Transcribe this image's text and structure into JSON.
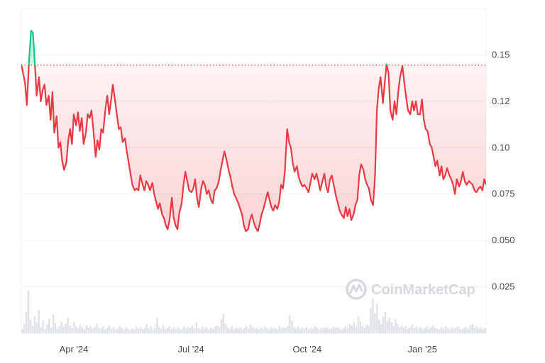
{
  "watermark": {
    "brand": "CoinMarketCap",
    "icon": "coinmarketcap-logo-icon"
  },
  "colors": {
    "up": "#16c784",
    "down": "#ea3943",
    "volume": "#dfe3e8",
    "grid": "#eef0f3",
    "baseline_dots": "#ea3943"
  },
  "chart_data": {
    "type": "line",
    "title": "",
    "xlabel": "",
    "ylabel": "",
    "x_tick_labels": [
      "Apr '24",
      "Jul '24",
      "Oct '24",
      "Jan '25"
    ],
    "y_tick_labels": [
      "0.025",
      "0.050",
      "0.075",
      "0.10",
      "0.12",
      "0.15"
    ],
    "y_ticks": [
      0.025,
      0.05,
      0.075,
      0.1,
      0.125,
      0.15
    ],
    "ylim": [
      0.0,
      0.175
    ],
    "xlim": [
      0,
      100
    ],
    "x_tick_positions": [
      11.3,
      36.5,
      61.5,
      86.3
    ],
    "baseline": 0.1445,
    "grid": true,
    "legend": "none",
    "series": [
      {
        "values": [
          [
            0.0,
            0.145
          ],
          [
            0.8,
            0.135
          ],
          [
            1.2,
            0.123
          ],
          [
            1.7,
            0.148
          ],
          [
            2.1,
            0.163
          ],
          [
            2.5,
            0.162
          ],
          [
            2.9,
            0.146
          ],
          [
            3.3,
            0.128
          ],
          [
            3.8,
            0.138
          ],
          [
            4.2,
            0.125
          ],
          [
            4.6,
            0.131
          ],
          [
            5.0,
            0.134
          ],
          [
            5.4,
            0.123
          ],
          [
            5.9,
            0.128
          ],
          [
            6.3,
            0.115
          ],
          [
            6.7,
            0.13
          ],
          [
            7.1,
            0.108
          ],
          [
            7.6,
            0.117
          ],
          [
            8.0,
            0.1
          ],
          [
            8.4,
            0.103
          ],
          [
            8.8,
            0.093
          ],
          [
            9.2,
            0.088
          ],
          [
            9.7,
            0.092
          ],
          [
            10.1,
            0.104
          ],
          [
            10.5,
            0.11
          ],
          [
            10.9,
            0.102
          ],
          [
            11.3,
            0.118
          ],
          [
            11.8,
            0.112
          ],
          [
            12.2,
            0.119
          ],
          [
            12.6,
            0.109
          ],
          [
            13.0,
            0.116
          ],
          [
            13.4,
            0.102
          ],
          [
            13.9,
            0.108
          ],
          [
            14.3,
            0.118
          ],
          [
            14.7,
            0.116
          ],
          [
            15.1,
            0.12
          ],
          [
            15.5,
            0.11
          ],
          [
            16.0,
            0.095
          ],
          [
            16.4,
            0.104
          ],
          [
            16.8,
            0.099
          ],
          [
            17.2,
            0.11
          ],
          [
            17.6,
            0.108
          ],
          [
            18.1,
            0.121
          ],
          [
            18.5,
            0.128
          ],
          [
            18.9,
            0.118
          ],
          [
            19.3,
            0.125
          ],
          [
            19.7,
            0.134
          ],
          [
            20.2,
            0.125
          ],
          [
            20.6,
            0.117
          ],
          [
            21.0,
            0.11
          ],
          [
            21.4,
            0.111
          ],
          [
            21.8,
            0.103
          ],
          [
            22.3,
            0.105
          ],
          [
            22.7,
            0.098
          ],
          [
            23.1,
            0.092
          ],
          [
            23.5,
            0.086
          ],
          [
            23.9,
            0.08
          ],
          [
            24.4,
            0.077
          ],
          [
            24.8,
            0.078
          ],
          [
            25.2,
            0.077
          ],
          [
            25.6,
            0.085
          ],
          [
            26.1,
            0.08
          ],
          [
            26.5,
            0.077
          ],
          [
            26.9,
            0.082
          ],
          [
            27.3,
            0.08
          ],
          [
            27.7,
            0.077
          ],
          [
            28.2,
            0.081
          ],
          [
            28.6,
            0.075
          ],
          [
            29.0,
            0.071
          ],
          [
            29.4,
            0.067
          ],
          [
            29.8,
            0.07
          ],
          [
            30.3,
            0.064
          ],
          [
            30.7,
            0.062
          ],
          [
            31.1,
            0.058
          ],
          [
            31.5,
            0.056
          ],
          [
            31.9,
            0.061
          ],
          [
            32.4,
            0.073
          ],
          [
            32.8,
            0.062
          ],
          [
            33.2,
            0.058
          ],
          [
            33.6,
            0.056
          ],
          [
            34.0,
            0.065
          ],
          [
            34.5,
            0.07
          ],
          [
            34.9,
            0.08
          ],
          [
            35.3,
            0.087
          ],
          [
            35.7,
            0.082
          ],
          [
            36.1,
            0.077
          ],
          [
            36.6,
            0.076
          ],
          [
            37.0,
            0.078
          ],
          [
            37.4,
            0.083
          ],
          [
            37.8,
            0.073
          ],
          [
            38.2,
            0.068
          ],
          [
            38.7,
            0.078
          ],
          [
            39.1,
            0.082
          ],
          [
            39.5,
            0.08
          ],
          [
            39.9,
            0.075
          ],
          [
            40.3,
            0.077
          ],
          [
            40.8,
            0.072
          ],
          [
            41.2,
            0.07
          ],
          [
            41.6,
            0.077
          ],
          [
            42.0,
            0.078
          ],
          [
            42.5,
            0.082
          ],
          [
            42.9,
            0.088
          ],
          [
            43.3,
            0.093
          ],
          [
            43.7,
            0.098
          ],
          [
            44.1,
            0.094
          ],
          [
            44.6,
            0.088
          ],
          [
            45.0,
            0.084
          ],
          [
            45.4,
            0.079
          ],
          [
            45.8,
            0.075
          ],
          [
            46.2,
            0.073
          ],
          [
            46.7,
            0.07
          ],
          [
            47.1,
            0.067
          ],
          [
            47.5,
            0.064
          ],
          [
            47.9,
            0.058
          ],
          [
            48.3,
            0.055
          ],
          [
            48.8,
            0.056
          ],
          [
            49.2,
            0.061
          ],
          [
            49.6,
            0.064
          ],
          [
            50.0,
            0.06
          ],
          [
            50.4,
            0.057
          ],
          [
            50.9,
            0.055
          ],
          [
            51.3,
            0.059
          ],
          [
            51.7,
            0.064
          ],
          [
            52.1,
            0.067
          ],
          [
            52.5,
            0.071
          ],
          [
            53.0,
            0.076
          ],
          [
            53.4,
            0.072
          ],
          [
            53.8,
            0.068
          ],
          [
            54.2,
            0.066
          ],
          [
            54.6,
            0.069
          ],
          [
            55.1,
            0.067
          ],
          [
            55.5,
            0.071
          ],
          [
            55.9,
            0.08
          ],
          [
            56.3,
            0.078
          ],
          [
            56.7,
            0.087
          ],
          [
            57.2,
            0.11
          ],
          [
            57.6,
            0.103
          ],
          [
            58.0,
            0.1
          ],
          [
            58.4,
            0.092
          ],
          [
            58.8,
            0.087
          ],
          [
            59.3,
            0.09
          ],
          [
            59.7,
            0.084
          ],
          [
            60.1,
            0.081
          ],
          [
            60.5,
            0.079
          ],
          [
            60.9,
            0.08
          ],
          [
            61.4,
            0.078
          ],
          [
            61.8,
            0.076
          ],
          [
            62.2,
            0.081
          ],
          [
            62.6,
            0.086
          ],
          [
            63.1,
            0.083
          ],
          [
            63.5,
            0.086
          ],
          [
            63.9,
            0.082
          ],
          [
            64.3,
            0.077
          ],
          [
            64.7,
            0.081
          ],
          [
            65.2,
            0.086
          ],
          [
            65.6,
            0.079
          ],
          [
            66.0,
            0.076
          ],
          [
            66.4,
            0.083
          ],
          [
            66.8,
            0.085
          ],
          [
            67.3,
            0.079
          ],
          [
            67.7,
            0.074
          ],
          [
            68.1,
            0.07
          ],
          [
            68.5,
            0.066
          ],
          [
            68.9,
            0.064
          ],
          [
            69.4,
            0.062
          ],
          [
            69.8,
            0.068
          ],
          [
            70.2,
            0.063
          ],
          [
            70.6,
            0.067
          ],
          [
            71.0,
            0.061
          ],
          [
            71.5,
            0.064
          ],
          [
            71.9,
            0.069
          ],
          [
            72.3,
            0.072
          ],
          [
            72.7,
            0.085
          ],
          [
            73.1,
            0.091
          ],
          [
            73.6,
            0.088
          ],
          [
            74.0,
            0.083
          ],
          [
            74.4,
            0.08
          ],
          [
            74.8,
            0.078
          ],
          [
            75.2,
            0.072
          ],
          [
            75.7,
            0.069
          ],
          [
            76.1,
            0.085
          ],
          [
            76.5,
            0.12
          ],
          [
            76.9,
            0.132
          ],
          [
            77.3,
            0.138
          ],
          [
            77.8,
            0.124
          ],
          [
            78.2,
            0.135
          ],
          [
            78.6,
            0.145
          ],
          [
            79.0,
            0.14
          ],
          [
            79.4,
            0.12
          ],
          [
            79.9,
            0.115
          ],
          [
            80.3,
            0.125
          ],
          [
            80.7,
            0.118
          ],
          [
            81.1,
            0.13
          ],
          [
            81.5,
            0.138
          ],
          [
            82.0,
            0.144
          ],
          [
            82.4,
            0.135
          ],
          [
            82.8,
            0.127
          ],
          [
            83.2,
            0.12
          ],
          [
            83.7,
            0.118
          ],
          [
            84.1,
            0.125
          ],
          [
            84.5,
            0.12
          ],
          [
            84.9,
            0.125
          ],
          [
            85.3,
            0.118
          ],
          [
            85.8,
            0.118
          ],
          [
            86.2,
            0.126
          ],
          [
            86.6,
            0.115
          ],
          [
            87.0,
            0.11
          ],
          [
            87.4,
            0.109
          ],
          [
            87.9,
            0.102
          ],
          [
            88.3,
            0.1
          ],
          [
            88.7,
            0.095
          ],
          [
            89.1,
            0.09
          ],
          [
            89.5,
            0.093
          ],
          [
            90.0,
            0.085
          ],
          [
            90.4,
            0.09
          ],
          [
            90.8,
            0.083
          ],
          [
            91.2,
            0.085
          ],
          [
            91.6,
            0.089
          ],
          [
            92.1,
            0.085
          ],
          [
            92.5,
            0.083
          ],
          [
            92.9,
            0.08
          ],
          [
            93.3,
            0.075
          ],
          [
            93.7,
            0.083
          ],
          [
            94.2,
            0.079
          ],
          [
            94.6,
            0.082
          ],
          [
            95.0,
            0.087
          ],
          [
            95.4,
            0.082
          ],
          [
            95.8,
            0.08
          ],
          [
            96.3,
            0.082
          ],
          [
            96.7,
            0.081
          ],
          [
            97.1,
            0.08
          ],
          [
            97.5,
            0.077
          ],
          [
            97.9,
            0.076
          ],
          [
            98.4,
            0.078
          ],
          [
            98.8,
            0.079
          ],
          [
            99.2,
            0.077
          ],
          [
            99.6,
            0.083
          ],
          [
            100.0,
            0.08
          ]
        ]
      }
    ],
    "volume": [
      5,
      12,
      28,
      55,
      18,
      9,
      22,
      14,
      30,
      8,
      16,
      6,
      11,
      19,
      7,
      24,
      13,
      6,
      9,
      15,
      8,
      12,
      20,
      10,
      7,
      14,
      9,
      6,
      11,
      8,
      5,
      10,
      7,
      9,
      6,
      8,
      12,
      7,
      6,
      9,
      5,
      7,
      10,
      6,
      8,
      5,
      6,
      9,
      7,
      5,
      8,
      6,
      4,
      7,
      5,
      9,
      6,
      8,
      5,
      7,
      12,
      6,
      9,
      5,
      7,
      20,
      8,
      6,
      10,
      5,
      7,
      9,
      6,
      8,
      5,
      7,
      6,
      5,
      9,
      6,
      8,
      7,
      10,
      6,
      14,
      7,
      5,
      9,
      6,
      8,
      5,
      7,
      6,
      9,
      10,
      8,
      18,
      25,
      12,
      8,
      6,
      9,
      5,
      7,
      6,
      8,
      5,
      7,
      9,
      6,
      11,
      8,
      6,
      7,
      5,
      8,
      6,
      9,
      7,
      5,
      8,
      6,
      7,
      5,
      9,
      6,
      8,
      7,
      9,
      24,
      16,
      8,
      6,
      9,
      5,
      7,
      6,
      8,
      5,
      7,
      6,
      9,
      8,
      5,
      7,
      6,
      8,
      7,
      5,
      6,
      9,
      7,
      8,
      6,
      5,
      7,
      9,
      6,
      12,
      10,
      14,
      8,
      22,
      15,
      9,
      7,
      11,
      10,
      32,
      45,
      26,
      38,
      18,
      12,
      21,
      28,
      16,
      20,
      14,
      9,
      18,
      12,
      8,
      10,
      7,
      9,
      6,
      8,
      11,
      7,
      9,
      6,
      8,
      5,
      7,
      9,
      6,
      8,
      10,
      7,
      6,
      5,
      8,
      6,
      9,
      7,
      5,
      8,
      6,
      7,
      9,
      6,
      5,
      7,
      8,
      6,
      10,
      12,
      7,
      9,
      6,
      8,
      5,
      7
    ],
    "volume_max": 55
  }
}
